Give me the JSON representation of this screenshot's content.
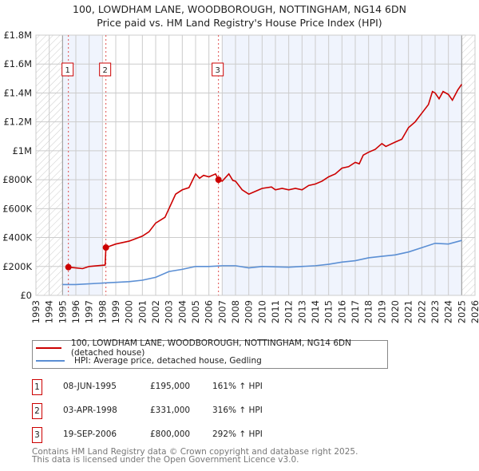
{
  "chart_data": {
    "type": "line",
    "title": "100, LOWDHAM LANE, WOODBOROUGH, NOTTINGHAM, NG14 6DN",
    "subtitle": "Price paid vs. HM Land Registry's House Price Index (HPI)",
    "xlim": [
      1993,
      2026
    ],
    "ylim": [
      0,
      1800000
    ],
    "x_ticks": [
      "1993",
      "1994",
      "1995",
      "1996",
      "1997",
      "1998",
      "1999",
      "2000",
      "2001",
      "2002",
      "2003",
      "2004",
      "2005",
      "2006",
      "2007",
      "2008",
      "2009",
      "2010",
      "2011",
      "2012",
      "2013",
      "2014",
      "2015",
      "2016",
      "2017",
      "2018",
      "2019",
      "2020",
      "2021",
      "2022",
      "2023",
      "2024",
      "2025",
      "2026"
    ],
    "y_ticks": [
      {
        "v": 0,
        "label": "£0"
      },
      {
        "v": 200000,
        "label": "£200K"
      },
      {
        "v": 400000,
        "label": "£400K"
      },
      {
        "v": 600000,
        "label": "£600K"
      },
      {
        "v": 800000,
        "label": "£800K"
      },
      {
        "v": 1000000,
        "label": "£1M"
      },
      {
        "v": 1200000,
        "label": "£1.2M"
      },
      {
        "v": 1400000,
        "label": "£1.4M"
      },
      {
        "v": 1600000,
        "label": "£1.6M"
      },
      {
        "v": 1800000,
        "label": "£1.8M"
      }
    ],
    "grid": true,
    "hatched_ranges": [
      [
        1993,
        1995
      ],
      [
        2025,
        2026
      ]
    ],
    "shaded_ranges": [
      [
        1995,
        1998
      ],
      [
        2007,
        2025
      ]
    ],
    "series": [
      {
        "name": "100, LOWDHAM LANE, WOODBOROUGH, NOTTINGHAM, NG14 6DN (detached house)",
        "color": "#cc0000",
        "x": [
          1995.44,
          1996,
          1996.5,
          1997,
          1998.2,
          1998.26,
          1999,
          2000,
          2001,
          2001.5,
          2002,
          2002.7,
          2003,
          2003.5,
          2004,
          2004.5,
          2005,
          2005.3,
          2005.6,
          2006,
          2006.5,
          2006.72,
          2007,
          2007.5,
          2007.8,
          2008,
          2008.5,
          2009,
          2009.5,
          2010,
          2010.7,
          2011,
          2011.5,
          2012,
          2012.5,
          2013,
          2013.5,
          2014,
          2014.5,
          2015,
          2015.5,
          2016,
          2016.5,
          2017,
          2017.3,
          2017.6,
          2018,
          2018.5,
          2019,
          2019.3,
          2020,
          2020.5,
          2021,
          2021.5,
          2022,
          2022.5,
          2022.8,
          2023,
          2023.3,
          2023.6,
          2024,
          2024.3,
          2024.7,
          2025
        ],
        "y": [
          195000,
          190000,
          185000,
          200000,
          210000,
          331000,
          355000,
          375000,
          410000,
          440000,
          500000,
          540000,
          600000,
          700000,
          730000,
          745000,
          840000,
          810000,
          830000,
          820000,
          840000,
          800000,
          790000,
          840000,
          795000,
          790000,
          730000,
          700000,
          720000,
          740000,
          750000,
          730000,
          740000,
          730000,
          740000,
          730000,
          760000,
          770000,
          790000,
          820000,
          840000,
          880000,
          890000,
          920000,
          910000,
          970000,
          990000,
          1010000,
          1050000,
          1030000,
          1060000,
          1080000,
          1160000,
          1200000,
          1260000,
          1320000,
          1410000,
          1400000,
          1360000,
          1410000,
          1390000,
          1350000,
          1420000,
          1460000
        ]
      },
      {
        "name": "HPI: Average price, detached house, Gedling",
        "color": "#5b8fd4",
        "x": [
          1995,
          1996,
          1998,
          2000,
          2001,
          2002,
          2003,
          2004,
          2005,
          2006,
          2007,
          2008,
          2009,
          2010,
          2012,
          2014,
          2015,
          2016,
          2017,
          2018,
          2019,
          2020,
          2021,
          2022,
          2023,
          2024,
          2025
        ],
        "y": [
          75000,
          75000,
          85000,
          95000,
          105000,
          125000,
          165000,
          180000,
          200000,
          200000,
          205000,
          205000,
          190000,
          200000,
          195000,
          205000,
          215000,
          230000,
          240000,
          260000,
          270000,
          280000,
          300000,
          330000,
          360000,
          355000,
          380000
        ]
      }
    ],
    "sales": [
      {
        "n": "1",
        "x": 1995.44,
        "y": 195000,
        "date": "08-JUN-1995",
        "price": "£195,000",
        "hpi": "161% ↑ HPI"
      },
      {
        "n": "2",
        "x": 1998.26,
        "y": 331000,
        "date": "03-APR-1998",
        "price": "£331,000",
        "hpi": "316% ↑ HPI"
      },
      {
        "n": "3",
        "x": 2006.72,
        "y": 800000,
        "date": "19-SEP-2006",
        "price": "£800,000",
        "hpi": "292% ↑ HPI"
      }
    ]
  },
  "footer": {
    "line1": "Contains HM Land Registry data © Crown copyright and database right 2025.",
    "line2": "This data is licensed under the Open Government Licence v3.0."
  }
}
